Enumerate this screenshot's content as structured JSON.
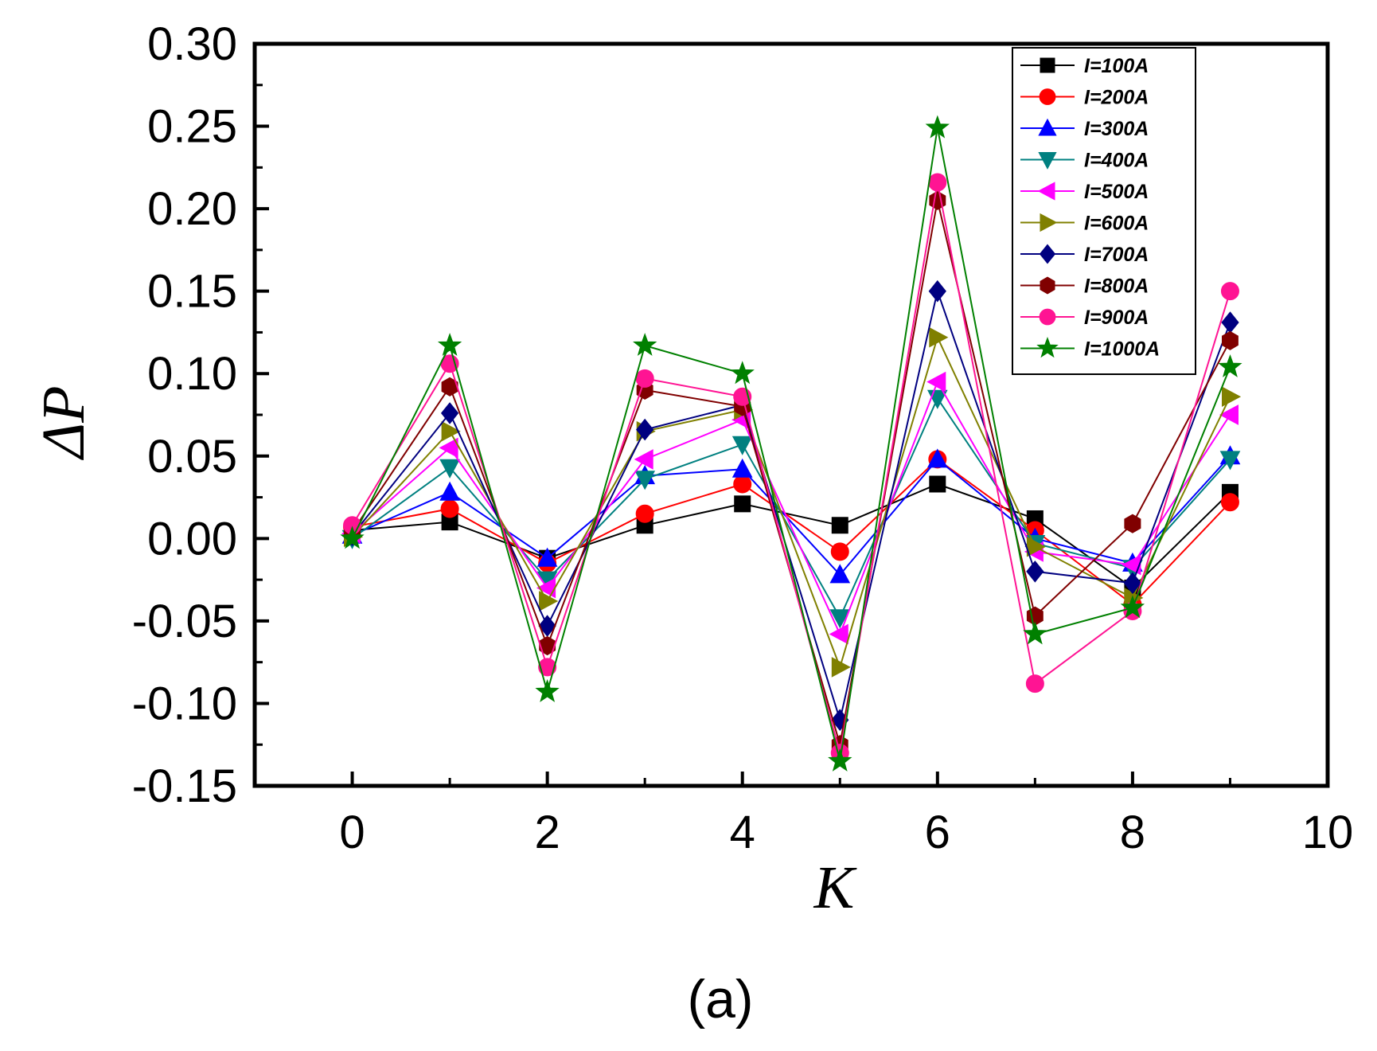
{
  "chart_data": {
    "type": "line",
    "title": "",
    "caption": "(a)",
    "xlabel": "K",
    "ylabel": "ΔP",
    "xlim": [
      -1,
      10
    ],
    "ylim": [
      -0.15,
      0.3
    ],
    "xticks": [
      0,
      2,
      4,
      6,
      8,
      10
    ],
    "xtick_labels": [
      "0",
      "2",
      "4",
      "6",
      "8",
      "10"
    ],
    "yticks": [
      -0.15,
      -0.1,
      -0.05,
      0.0,
      0.05,
      0.1,
      0.15,
      0.2,
      0.25,
      0.3
    ],
    "ytick_labels": [
      "-0.15",
      "-0.10",
      "-0.05",
      "0.00",
      "0.05",
      "0.10",
      "0.15",
      "0.20",
      "0.25",
      "0.30"
    ],
    "grid": false,
    "legend_position": "top-right",
    "x": [
      0,
      1,
      2,
      3,
      4,
      5,
      6,
      7,
      8,
      9
    ],
    "series": [
      {
        "name": "I=100A",
        "color": "#000000",
        "marker": "square",
        "values": [
          0.005,
          0.01,
          -0.012,
          0.008,
          0.021,
          0.008,
          0.033,
          0.012,
          -0.03,
          0.028
        ]
      },
      {
        "name": "I=200A",
        "color": "#ff0000",
        "marker": "circle",
        "values": [
          0.007,
          0.018,
          -0.015,
          0.015,
          0.033,
          -0.008,
          0.048,
          0.005,
          -0.04,
          0.022
        ]
      },
      {
        "name": "I=300A",
        "color": "#0000ff",
        "marker": "triangle-up",
        "values": [
          0.002,
          0.028,
          -0.012,
          0.038,
          0.042,
          -0.022,
          0.048,
          0.0,
          -0.015,
          0.05
        ]
      },
      {
        "name": "I=400A",
        "color": "#008080",
        "marker": "triangle-down",
        "values": [
          0.0,
          0.043,
          -0.025,
          0.036,
          0.057,
          -0.048,
          0.085,
          -0.003,
          -0.018,
          0.048
        ]
      },
      {
        "name": "I=500A",
        "color": "#ff00ff",
        "marker": "triangle-left",
        "values": [
          0.003,
          0.055,
          -0.03,
          0.048,
          0.072,
          -0.058,
          0.095,
          -0.008,
          -0.016,
          0.075
        ]
      },
      {
        "name": "I=600A",
        "color": "#808000",
        "marker": "triangle-right",
        "values": [
          0.001,
          0.065,
          -0.038,
          0.065,
          0.078,
          -0.078,
          0.122,
          -0.005,
          -0.036,
          0.086
        ]
      },
      {
        "name": "I=700A",
        "color": "#000080",
        "marker": "diamond",
        "values": [
          0.002,
          0.076,
          -0.053,
          0.066,
          0.081,
          -0.11,
          0.15,
          -0.02,
          -0.027,
          0.131
        ]
      },
      {
        "name": "I=800A",
        "color": "#800000",
        "marker": "hexagon",
        "values": [
          0.004,
          0.092,
          -0.065,
          0.09,
          0.08,
          -0.125,
          0.205,
          -0.047,
          0.009,
          0.12
        ]
      },
      {
        "name": "I=900A",
        "color": "#ff1493",
        "marker": "circle",
        "values": [
          0.008,
          0.106,
          -0.078,
          0.097,
          0.086,
          -0.13,
          0.216,
          -0.088,
          -0.044,
          0.15
        ]
      },
      {
        "name": "I=1000A",
        "color": "#008000",
        "marker": "star",
        "values": [
          0.0,
          0.117,
          -0.093,
          0.117,
          0.1,
          -0.135,
          0.249,
          -0.058,
          -0.042,
          0.104
        ]
      }
    ]
  }
}
